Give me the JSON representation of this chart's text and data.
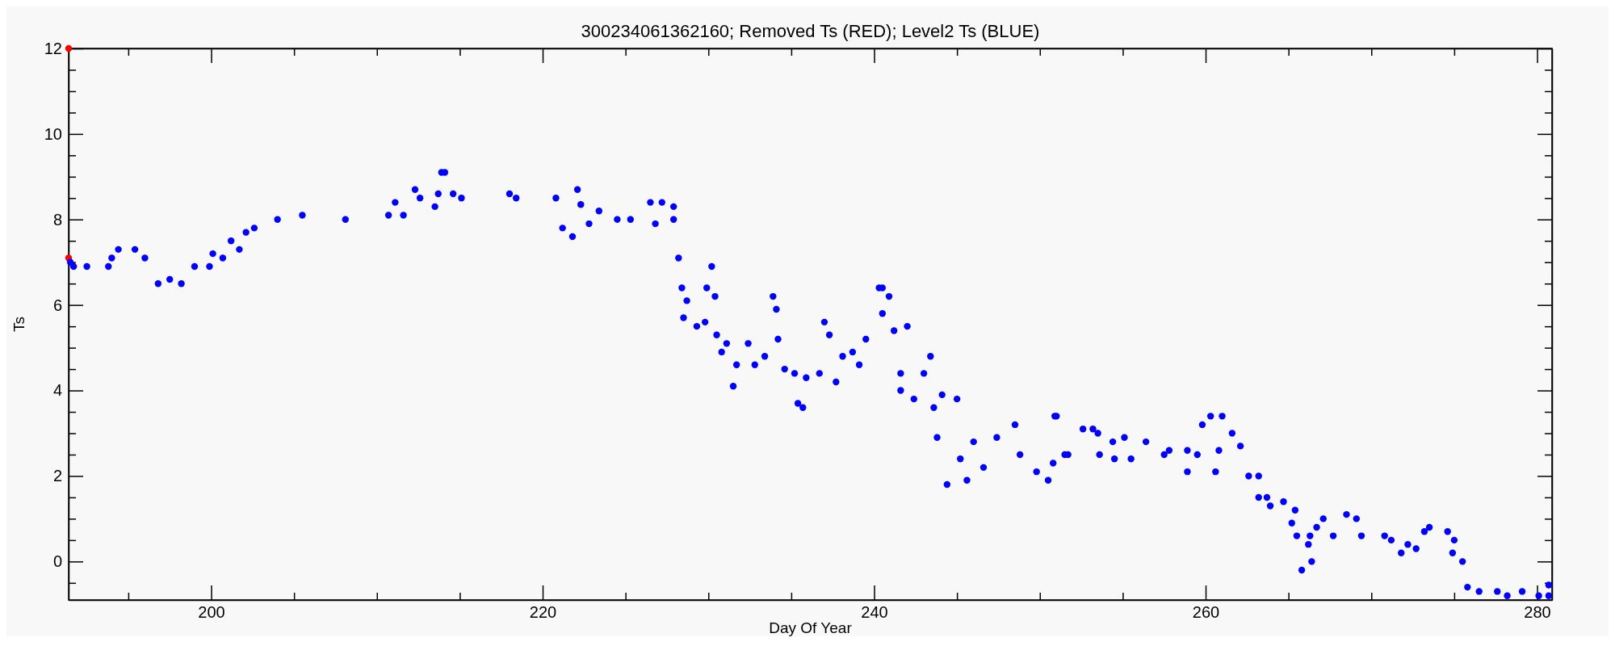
{
  "chart_data": {
    "type": "scatter",
    "title": "300234061362160; Removed Ts (RED); Level2 Ts (BLUE)",
    "xlabel": "Day Of Year",
    "ylabel": "Ts",
    "marker": "circle",
    "xlim": [
      191.4,
      280.9
    ],
    "ylim": [
      -0.9,
      12
    ],
    "xticks": [
      {
        "value": 195,
        "label": null
      },
      200,
      {
        "value": 205,
        "label": null
      },
      {
        "value": 210,
        "label": null
      },
      {
        "value": 215,
        "label": null
      },
      220,
      {
        "value": 225,
        "label": null
      },
      {
        "value": 230,
        "label": null
      },
      {
        "value": 235,
        "label": null
      },
      240,
      {
        "value": 245,
        "label": null
      },
      {
        "value": 250,
        "label": null
      },
      {
        "value": 255,
        "label": null
      },
      260,
      {
        "value": 265,
        "label": null
      },
      {
        "value": 270,
        "label": null
      },
      {
        "value": 275,
        "label": null
      },
      280
    ],
    "yticks": [
      {
        "value": -0.5,
        "label": null
      },
      0,
      {
        "value": 0.5,
        "label": null
      },
      {
        "value": 1,
        "label": null
      },
      {
        "value": 1.5,
        "label": null
      },
      2,
      {
        "value": 2.5,
        "label": null
      },
      {
        "value": 3,
        "label": null
      },
      {
        "value": 3.5,
        "label": null
      },
      4,
      {
        "value": 4.5,
        "label": null
      },
      {
        "value": 5,
        "label": null
      },
      {
        "value": 5.5,
        "label": null
      },
      6,
      {
        "value": 6.5,
        "label": null
      },
      {
        "value": 7,
        "label": null
      },
      {
        "value": 7.5,
        "label": null
      },
      8,
      {
        "value": 8.5,
        "label": null
      },
      {
        "value": 9,
        "label": null
      },
      {
        "value": 9.5,
        "label": null
      },
      10,
      {
        "value": 10.5,
        "label": null
      },
      {
        "value": 11,
        "label": null
      },
      {
        "value": 11.5,
        "label": null
      },
      12
    ],
    "series": [
      {
        "color": "#ff0000",
        "x": [
          191.4,
          191.4
        ],
        "values": [
          12.0,
          7.1
        ]
      },
      {
        "color": "#0000ff",
        "x": [
          191.5,
          191.7,
          192.5,
          193.8,
          194.0,
          194.4,
          195.4,
          196.0,
          196.8,
          197.5,
          198.2,
          199.0,
          199.9,
          200.1,
          200.7,
          201.2,
          201.7,
          202.1,
          202.6,
          204.0,
          205.5,
          208.1,
          210.7,
          211.1,
          211.6,
          212.3,
          212.6,
          213.5,
          213.7,
          213.9,
          214.1,
          214.6,
          215.1,
          218.0,
          218.4,
          220.8,
          221.2,
          221.8,
          222.1,
          222.3,
          222.8,
          223.4,
          224.5,
          225.3,
          226.5,
          226.8,
          227.2,
          227.9,
          227.9,
          228.2,
          228.4,
          228.5,
          228.7,
          229.3,
          229.8,
          229.9,
          230.2,
          230.4,
          230.5,
          230.8,
          231.1,
          231.5,
          231.7,
          232.4,
          232.8,
          233.4,
          233.9,
          234.1,
          234.2,
          234.6,
          235.2,
          235.4,
          235.7,
          235.9,
          236.7,
          237.0,
          237.3,
          237.7,
          238.1,
          238.7,
          239.1,
          239.5,
          240.3,
          240.5,
          240.5,
          240.9,
          241.2,
          241.6,
          241.6,
          242.0,
          242.4,
          243.0,
          243.4,
          243.6,
          243.8,
          244.1,
          244.4,
          245.0,
          245.2,
          245.6,
          246.0,
          246.6,
          247.4,
          248.5,
          248.8,
          249.8,
          250.5,
          250.8,
          250.9,
          251.0,
          251.5,
          251.7,
          252.6,
          253.2,
          253.5,
          253.6,
          254.4,
          254.5,
          255.1,
          255.5,
          256.4,
          257.5,
          257.8,
          258.9,
          258.9,
          259.5,
          259.8,
          260.3,
          260.6,
          260.8,
          261.0,
          261.6,
          262.1,
          262.6,
          263.2,
          263.2,
          263.7,
          263.9,
          264.7,
          265.2,
          265.4,
          265.5,
          265.8,
          266.2,
          266.4,
          266.3,
          266.7,
          267.1,
          267.7,
          268.5,
          269.1,
          269.4,
          270.8,
          271.2,
          271.8,
          272.2,
          272.7,
          273.2,
          273.5,
          274.6,
          275.0,
          274.9,
          275.5,
          275.8,
          276.5,
          277.6,
          278.2,
          279.1,
          280.1,
          280.7,
          280.7
        ],
        "values": [
          7.0,
          6.9,
          6.9,
          6.9,
          7.1,
          7.3,
          7.3,
          7.1,
          6.5,
          6.6,
          6.5,
          6.9,
          6.9,
          7.2,
          7.1,
          7.5,
          7.3,
          7.7,
          7.8,
          8.0,
          8.1,
          8.0,
          8.1,
          8.4,
          8.1,
          8.7,
          8.5,
          8.3,
          8.6,
          9.1,
          9.1,
          8.6,
          8.5,
          8.6,
          8.5,
          8.5,
          7.8,
          7.6,
          8.7,
          8.35,
          7.9,
          8.2,
          8.0,
          8.0,
          8.4,
          7.9,
          8.4,
          8.3,
          8.0,
          7.1,
          6.4,
          5.7,
          6.1,
          5.5,
          5.6,
          6.4,
          6.9,
          6.2,
          5.3,
          4.9,
          5.1,
          4.1,
          4.6,
          5.1,
          4.6,
          4.8,
          6.2,
          5.9,
          5.2,
          4.5,
          4.4,
          3.7,
          3.6,
          4.3,
          4.4,
          5.6,
          5.3,
          4.2,
          4.8,
          4.9,
          4.6,
          5.2,
          6.4,
          6.4,
          5.8,
          6.2,
          5.4,
          4.4,
          4.0,
          5.5,
          3.8,
          4.4,
          4.8,
          3.6,
          2.9,
          3.9,
          1.8,
          3.8,
          2.4,
          1.9,
          2.8,
          2.2,
          2.9,
          3.2,
          2.5,
          2.1,
          1.9,
          2.3,
          3.4,
          3.4,
          2.5,
          2.5,
          3.1,
          3.1,
          3.0,
          2.5,
          2.8,
          2.4,
          2.9,
          2.4,
          2.8,
          2.5,
          2.6,
          2.6,
          2.1,
          2.5,
          3.2,
          3.4,
          2.1,
          2.6,
          3.4,
          3.0,
          2.7,
          2.0,
          2.0,
          1.5,
          1.5,
          1.3,
          1.4,
          0.9,
          1.2,
          0.6,
          -0.2,
          0.4,
          0.0,
          0.6,
          0.8,
          1.0,
          0.6,
          1.1,
          1.0,
          0.6,
          0.6,
          0.5,
          0.2,
          0.4,
          0.3,
          0.7,
          0.8,
          0.7,
          0.5,
          0.2,
          0.0,
          -0.6,
          -0.7,
          -0.7,
          -0.8,
          -0.7,
          -0.8,
          -0.55,
          -0.8
        ]
      }
    ]
  }
}
